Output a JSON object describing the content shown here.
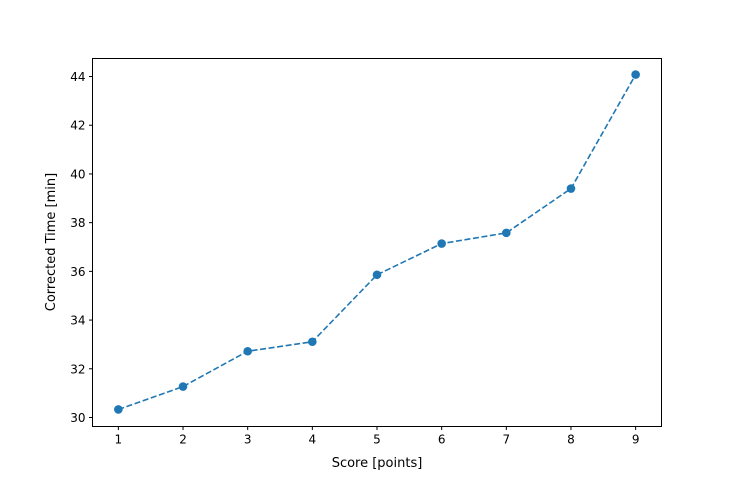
{
  "chart_data": {
    "type": "line",
    "title": "",
    "xlabel": "Score [points]",
    "ylabel": "Corrected Time [min]",
    "x": [
      1,
      2,
      3,
      4,
      5,
      6,
      7,
      8,
      9
    ],
    "series": [
      {
        "values": [
          30.33,
          31.27,
          32.72,
          33.11,
          35.86,
          37.14,
          37.58,
          39.4,
          44.08
        ],
        "color": "#1f77b4",
        "linestyle": "dashed",
        "marker": "circle"
      }
    ],
    "xlim": [
      0.6,
      9.4
    ],
    "ylim": [
      29.63,
      44.74
    ],
    "xticks": [
      "1",
      "2",
      "3",
      "4",
      "5",
      "6",
      "7",
      "8",
      "9"
    ],
    "yticks": [
      "30",
      "32",
      "34",
      "36",
      "38",
      "40",
      "42",
      "44"
    ],
    "grid": false
  }
}
